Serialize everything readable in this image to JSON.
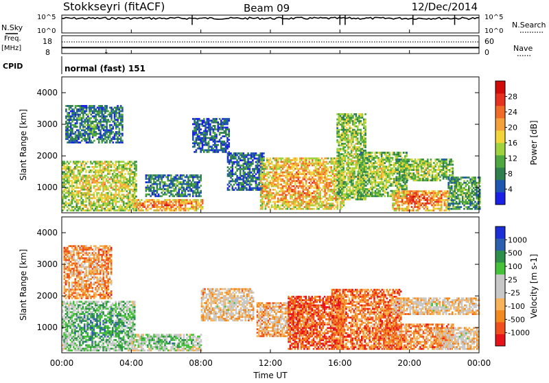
{
  "header": {
    "station": "Stokkseyri (fitACF)",
    "beam": "Beam 09",
    "date": "12/Dec/2014"
  },
  "top_panels": {
    "nsky": {
      "label": "N.Sky",
      "ticks": [
        "10^5",
        "10^0"
      ],
      "right_ticks": [
        "10^5",
        "10^0"
      ],
      "right_label": "N.Search",
      "trace_level": 0.82,
      "spike_hours": [
        7.5,
        12.7,
        16.0,
        16.3,
        20.2,
        22.6
      ]
    },
    "freq": {
      "label_line1": "Freq.",
      "label_line2": "[MHz]",
      "left_ticks": [
        "18",
        "8"
      ],
      "right_ticks": [
        "60",
        "0"
      ],
      "right_label": "Nave",
      "freq_level": 0.42,
      "nave_level": 0.18
    },
    "cpid": {
      "label": "CPID",
      "program": "normal (fast) 151"
    }
  },
  "chart_data": [
    {
      "type": "heatmap",
      "title": "",
      "xlabel": "",
      "ylabel": "Slant Range [km]",
      "x_range": [
        0,
        24
      ],
      "y_range": [
        200,
        4500
      ],
      "y_ticks": [
        1000,
        2000,
        3000,
        4000
      ],
      "colorbar": {
        "label": "Power [dB]",
        "ticks": [
          "28",
          "24",
          "20",
          "16",
          "12",
          "8",
          "4"
        ],
        "range": [
          0,
          30
        ],
        "colors": [
          "#1a20e6",
          "#1f56b0",
          "#2f7f4f",
          "#4fa83f",
          "#9fd23f",
          "#f2d53b",
          "#f4a03b",
          "#f06b27",
          "#e63020",
          "#d10a0a"
        ]
      },
      "regions": [
        {
          "t": [
            0.0,
            4.3
          ],
          "r": [
            250,
            1800
          ],
          "level": 0.6
        },
        {
          "t": [
            0.2,
            3.5
          ],
          "r": [
            2400,
            3600
          ],
          "level": 0.28
        },
        {
          "t": [
            4.0,
            8.1
          ],
          "r": [
            250,
            600
          ],
          "level": 0.82
        },
        {
          "t": [
            4.8,
            8.0
          ],
          "r": [
            700,
            1400
          ],
          "level": 0.3
        },
        {
          "t": [
            7.5,
            9.6
          ],
          "r": [
            2100,
            3200
          ],
          "level": 0.2
        },
        {
          "t": [
            9.5,
            11.6
          ],
          "r": [
            900,
            2100
          ],
          "level": 0.22
        },
        {
          "t": [
            11.4,
            16.2
          ],
          "r": [
            300,
            1900
          ],
          "level": 0.74
        },
        {
          "t": [
            15.8,
            17.5
          ],
          "r": [
            600,
            3300
          ],
          "level": 0.52
        },
        {
          "t": [
            17.0,
            19.8
          ],
          "r": [
            700,
            2100
          ],
          "level": 0.5
        },
        {
          "t": [
            19.0,
            22.3
          ],
          "r": [
            250,
            900
          ],
          "level": 0.82
        },
        {
          "t": [
            19.2,
            22.5
          ],
          "r": [
            1200,
            1900
          ],
          "level": 0.5
        },
        {
          "t": [
            22.2,
            24.0
          ],
          "r": [
            300,
            1300
          ],
          "level": 0.4
        }
      ]
    },
    {
      "type": "heatmap",
      "title": "",
      "xlabel": "Time UT",
      "ylabel": "Slant Range [km]",
      "x_range": [
        0,
        24
      ],
      "y_range": [
        200,
        4500
      ],
      "x_ticks": [
        "00:00",
        "04:00",
        "08:00",
        "12:00",
        "16:00",
        "20:00",
        "00:00"
      ],
      "y_ticks": [
        1000,
        2000,
        3000,
        4000
      ],
      "colorbar": {
        "label": "Velocity [m s-1]",
        "ticks": [
          "1000",
          "500",
          "100",
          "25",
          "-25",
          "-100",
          "-500",
          "-1000"
        ],
        "range": [
          -1000,
          1000
        ],
        "colors": [
          "#e6141a",
          "#f0501e",
          "#f28a1f",
          "#f7b25a",
          "#c8c8c8",
          "#c8c8c8",
          "#46c23a",
          "#2e8f4c",
          "#2c5fae",
          "#1c2fd6"
        ]
      },
      "regions": [
        {
          "t": [
            0.0,
            4.2
          ],
          "r": [
            250,
            1800
          ],
          "level": 0.78
        },
        {
          "t": [
            0.1,
            2.8
          ],
          "r": [
            1900,
            3600
          ],
          "level": 0.35
        },
        {
          "t": [
            4.0,
            8.0
          ],
          "r": [
            250,
            800
          ],
          "level": 0.7
        },
        {
          "t": [
            8.0,
            11.0
          ],
          "r": [
            1200,
            2200
          ],
          "level": 0.5
        },
        {
          "t": [
            11.2,
            14.5
          ],
          "r": [
            700,
            1800
          ],
          "level": 0.42
        },
        {
          "t": [
            13.0,
            16.2
          ],
          "r": [
            300,
            2000
          ],
          "level": 0.18
        },
        {
          "t": [
            15.5,
            19.5
          ],
          "r": [
            300,
            2200
          ],
          "level": 0.26
        },
        {
          "t": [
            18.5,
            22.5
          ],
          "r": [
            300,
            1100
          ],
          "level": 0.3
        },
        {
          "t": [
            19.0,
            24.0
          ],
          "r": [
            1400,
            1900
          ],
          "level": 0.5
        },
        {
          "t": [
            21.5,
            24.0
          ],
          "r": [
            300,
            1000
          ],
          "level": 0.5
        }
      ]
    }
  ],
  "colors": {
    "axis": "#000000",
    "background": "#ffffff"
  }
}
